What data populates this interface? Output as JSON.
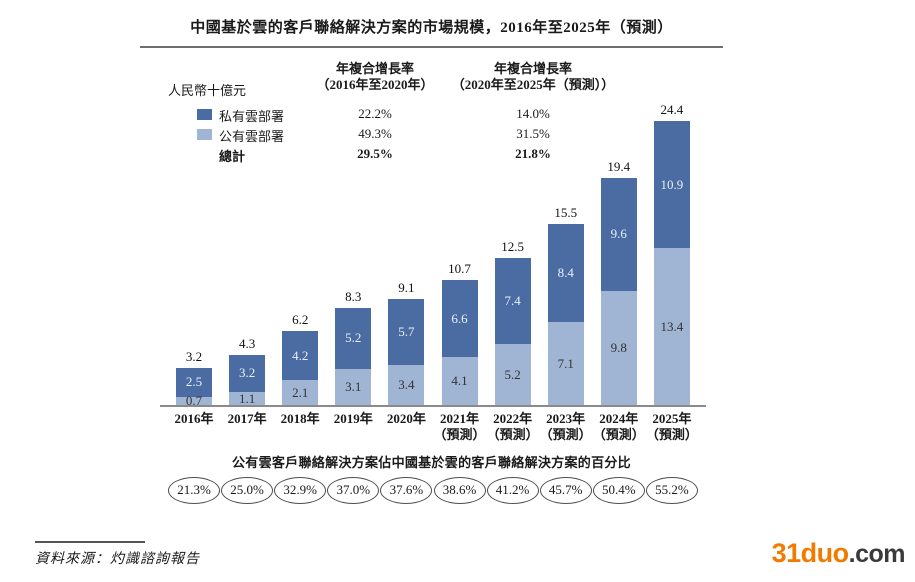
{
  "title": "中國基於雲的客戶聯絡解決方案的市場規模，2016年至2025年（預測）",
  "unit_label": "人民幣十億元",
  "cagr_table": {
    "col1_header_line1": "年複合增長率",
    "col1_header_line2": "（2016年至2020年）",
    "col2_header_line1": "年複合增長率",
    "col2_header_line2": "（2020年至2025年（預測））",
    "rows": [
      {
        "label": "私有雲部署",
        "col1": "22.2%",
        "col2": "14.0%"
      },
      {
        "label": "公有雲部署",
        "col1": "49.3%",
        "col2": "31.5%"
      },
      {
        "label": "總計",
        "col1": "29.5%",
        "col2": "21.8%"
      }
    ]
  },
  "chart_data": {
    "type": "bar",
    "stacked": true,
    "title": "中國基於雲的客戶聯絡解決方案的市場規模，2016年至2025年（預測）",
    "ylabel": "人民幣十億元",
    "ylim": [
      0,
      24.4
    ],
    "grid": false,
    "legend_position": "top-left",
    "categories": [
      "2016年",
      "2017年",
      "2018年",
      "2019年",
      "2020年",
      "2021年",
      "2022年",
      "2023年",
      "2024年",
      "2025年"
    ],
    "forecast_suffix": "（預測）",
    "forecast_from_index": 5,
    "series": [
      {
        "name": "私有雲部署",
        "color": "#4a6ca3",
        "values": [
          2.5,
          3.2,
          4.2,
          5.2,
          5.7,
          6.6,
          7.4,
          8.4,
          9.6,
          10.9
        ]
      },
      {
        "name": "公有雲部署",
        "color": "#a0b4d4",
        "values": [
          0.7,
          1.1,
          2.1,
          3.1,
          3.4,
          4.1,
          5.2,
          7.1,
          9.8,
          13.4
        ]
      }
    ],
    "totals": [
      3.2,
      4.3,
      6.2,
      8.3,
      9.1,
      10.7,
      12.5,
      15.5,
      19.4,
      24.4
    ]
  },
  "public_share": {
    "caption": "公有雲客戶聯絡解決方案佔中國基於雲的客戶聯絡解決方案的百分比",
    "values": [
      "21.3%",
      "25.0%",
      "32.9%",
      "37.0%",
      "37.6%",
      "38.6%",
      "41.2%",
      "45.7%",
      "50.4%",
      "55.2%"
    ]
  },
  "source": "資料來源：灼識諮詢報告",
  "watermark": {
    "brand": "31duo",
    "suffix": ".com",
    "brand_color": "#f07b00",
    "suffix_color": "#3a3a3a"
  }
}
